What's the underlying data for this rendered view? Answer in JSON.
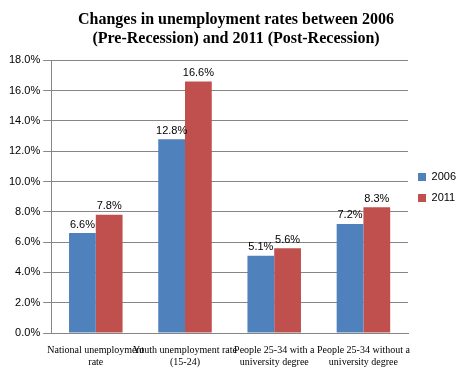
{
  "chart_data": {
    "type": "bar",
    "title": "Changes in unemployment rates between 2006 (Pre-Recession) and 2011 (Post-Recession)",
    "categories": [
      "National unemployment rate",
      "Youth unemployment rate (15-24)",
      "People 25-34 with a university degree",
      "People 25-34 without a university degree"
    ],
    "series": [
      {
        "name": "2006",
        "color": "#4f81bd",
        "values": [
          6.6,
          12.8,
          5.1,
          7.2
        ],
        "value_labels": [
          "6.6%",
          "12.8%",
          "5.1%",
          "7.2%"
        ]
      },
      {
        "name": "2011",
        "color": "#c0504d",
        "values": [
          7.8,
          16.6,
          5.6,
          8.3
        ],
        "value_labels": [
          "7.8%",
          "16.6%",
          "5.6%",
          "8.3%"
        ]
      }
    ],
    "ylim": [
      0,
      18
    ],
    "yticks": [
      {
        "value": 0,
        "label": "0.0%"
      },
      {
        "value": 2,
        "label": "2.0%"
      },
      {
        "value": 4,
        "label": "4.0%"
      },
      {
        "value": 6,
        "label": "6.0%"
      },
      {
        "value": 8,
        "label": "8.0%"
      },
      {
        "value": 10,
        "label": "10.0%"
      },
      {
        "value": 12,
        "label": "12.0%"
      },
      {
        "value": 14,
        "label": "14.0%"
      },
      {
        "value": 16,
        "label": "16.0%"
      },
      {
        "value": 18,
        "label": "18.0%"
      }
    ],
    "grid": true,
    "legend": "right",
    "data_labels": true
  }
}
